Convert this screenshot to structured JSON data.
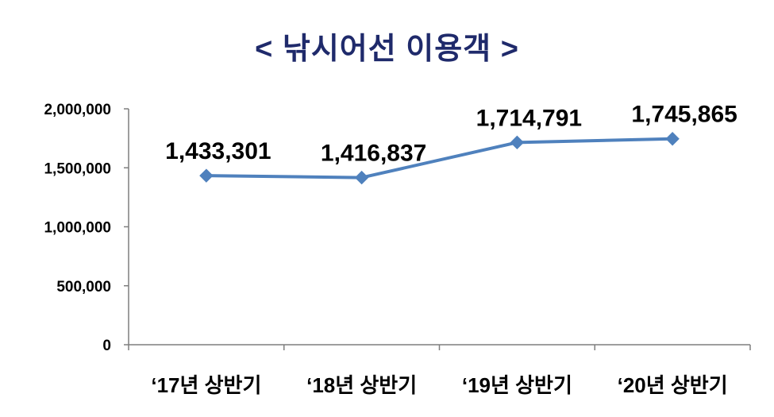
{
  "chart_data": {
    "type": "line",
    "title": "< 낚시어선 이용객 >",
    "categories": [
      "‘17년 상반기",
      "‘18년 상반기",
      "‘19년 상반기",
      "‘20년 상반기"
    ],
    "series": [
      {
        "values": [
          1433301,
          1416837,
          1714791,
          1745865
        ],
        "data_labels": [
          "1,433,301",
          "1,416,837",
          "1,714,791",
          "1,745,865"
        ],
        "color": "#4f81bd",
        "marker": "diamond"
      }
    ],
    "ylim": [
      0,
      2000000
    ],
    "yticks": [
      0,
      500000,
      1000000,
      1500000,
      2000000
    ],
    "ytick_labels": [
      "0",
      "500,000",
      "1,000,000",
      "1,500,000",
      "2,000,000"
    ],
    "grid": false,
    "legend": "none",
    "xlabel": "",
    "ylabel": ""
  }
}
